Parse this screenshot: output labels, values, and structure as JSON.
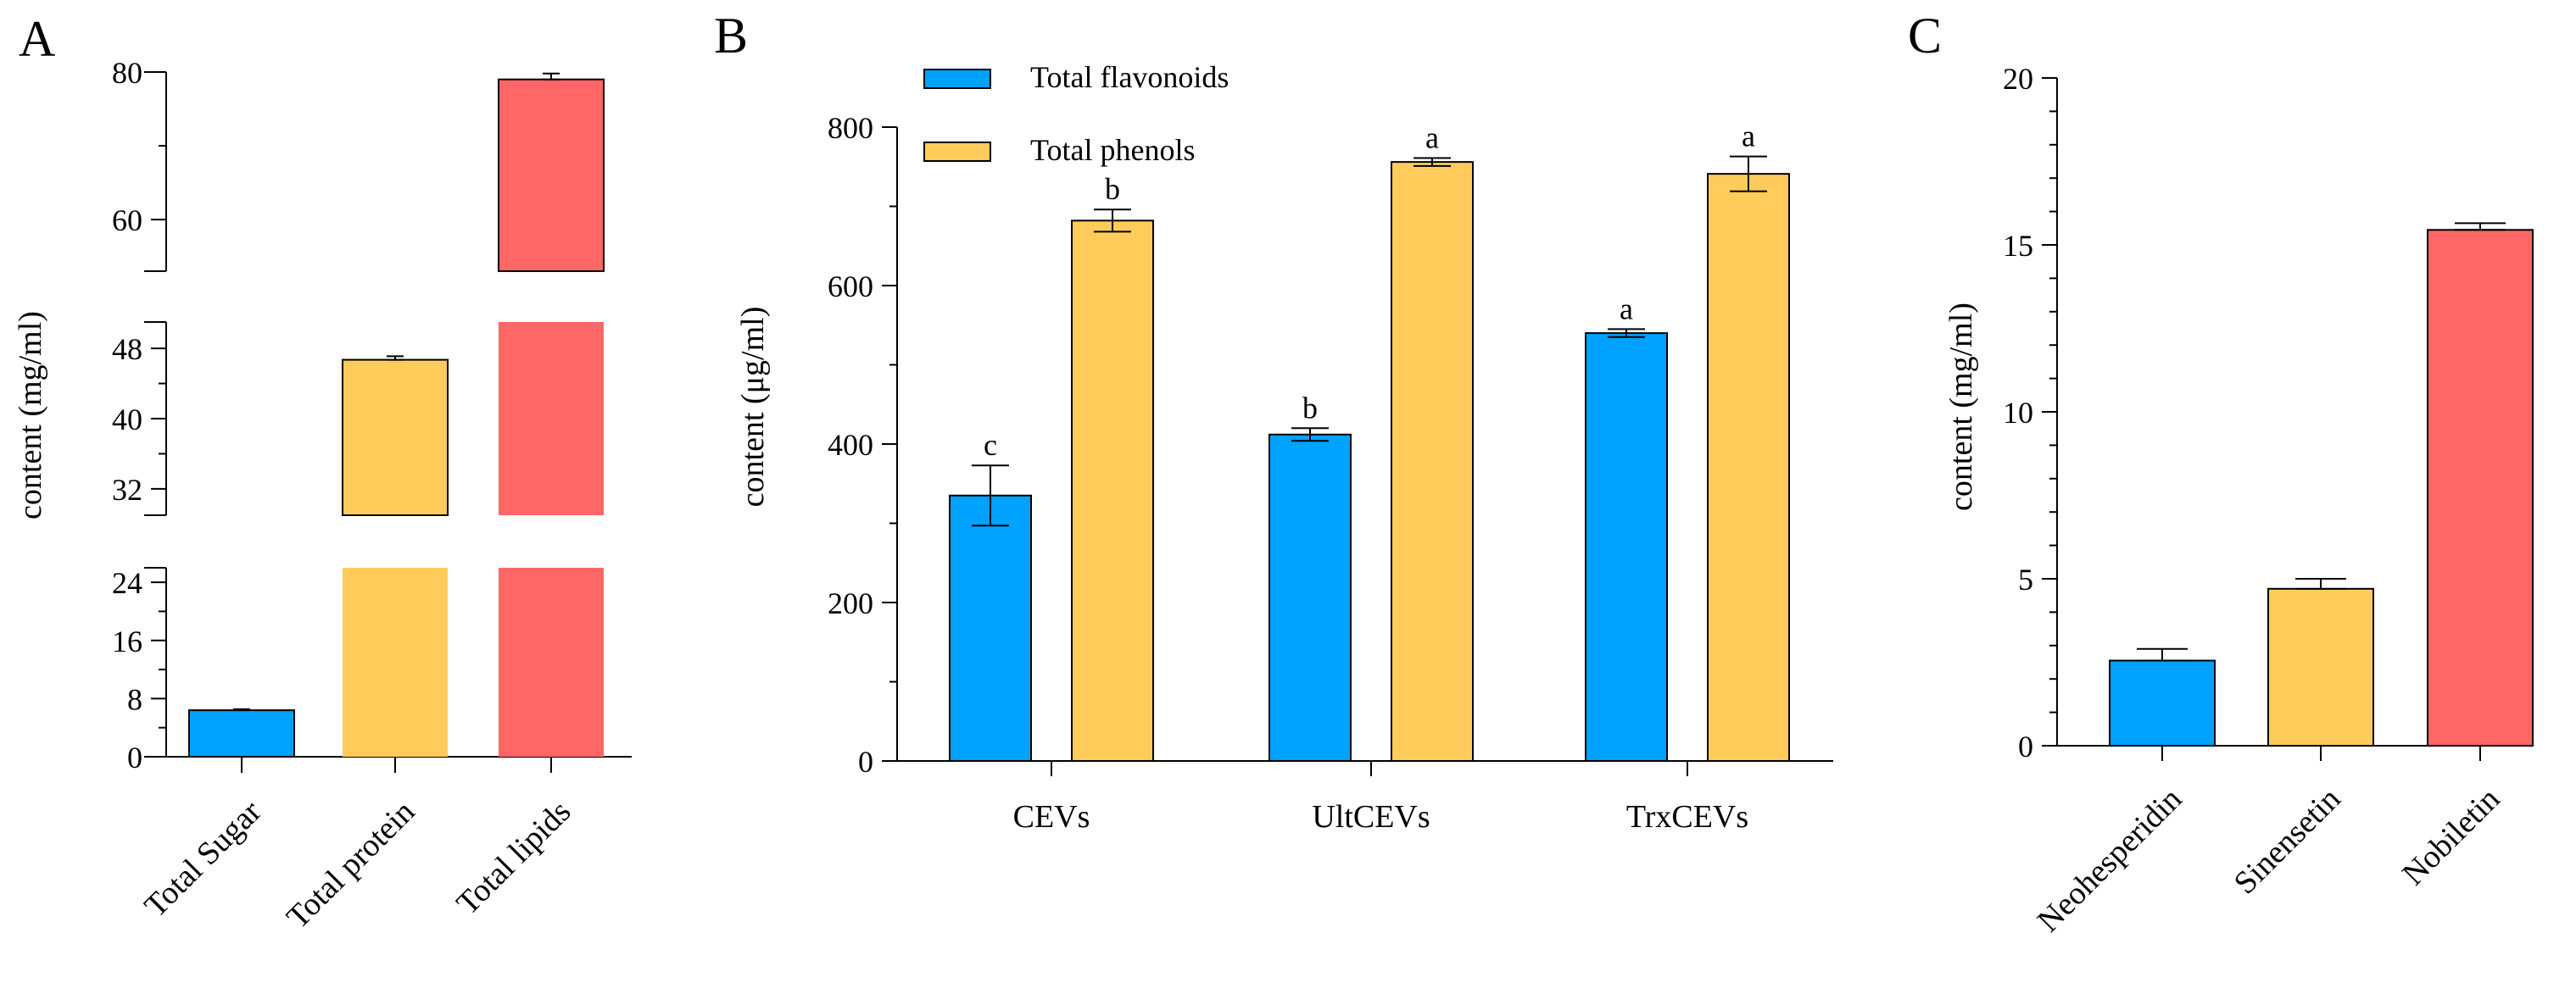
{
  "colors": {
    "blue": "#00A2FF",
    "yellow": "#FFCC5C",
    "red": "#FF6666",
    "axis": "#000000"
  },
  "chart_data": [
    {
      "panel": "A",
      "type": "bar",
      "ylabel": "content (mg/ml)",
      "categories": [
        "Total Sugar",
        "Total protein",
        "Total lipids"
      ],
      "values": [
        6.4,
        46.7,
        79
      ],
      "errors": [
        0.15,
        0.4,
        0.8
      ],
      "colors": [
        "#00A2FF",
        "#FFCC5C",
        "#FF6666"
      ],
      "axis_breaks": [
        [
          26,
          29
        ],
        [
          51,
          53
        ]
      ],
      "segments": [
        {
          "range": [
            0,
            26
          ],
          "ticks": [
            "0",
            "8",
            "16",
            "24"
          ]
        },
        {
          "range": [
            29,
            51
          ],
          "ticks": [
            "32",
            "40",
            "48"
          ]
        },
        {
          "range": [
            53,
            80
          ],
          "ticks": [
            "60",
            "80"
          ]
        }
      ]
    },
    {
      "panel": "B",
      "type": "bar",
      "ylabel": "content (μg/ml)",
      "categories": [
        "CEVs",
        "UltCEVs",
        "TrxCEVs"
      ],
      "ylim": [
        0,
        800
      ],
      "yticks": [
        "0",
        "200",
        "400",
        "600",
        "800"
      ],
      "legend_position": "top-left",
      "series": [
        {
          "name": "Total flavonoids",
          "color": "#00A2FF",
          "values": [
            335,
            412,
            540
          ],
          "errors": [
            38,
            8,
            5
          ],
          "letters": [
            "c",
            "b",
            "a"
          ]
        },
        {
          "name": "Total phenols",
          "color": "#FFCC5C",
          "values": [
            682,
            756,
            741
          ],
          "errors": [
            14,
            5,
            22
          ],
          "letters": [
            "b",
            "a",
            "a"
          ]
        }
      ]
    },
    {
      "panel": "C",
      "type": "bar",
      "ylabel": "content (mg/ml)",
      "categories": [
        "Neohesperidin",
        "Sinensetin",
        "Nobiletin"
      ],
      "values": [
        2.55,
        4.7,
        15.45
      ],
      "errors": [
        0.35,
        0.3,
        0.2
      ],
      "colors": [
        "#00A2FF",
        "#FFCC5C",
        "#FF6666"
      ],
      "ylim": [
        0,
        20
      ],
      "yticks": [
        "0",
        "5",
        "10",
        "15",
        "20"
      ]
    }
  ]
}
